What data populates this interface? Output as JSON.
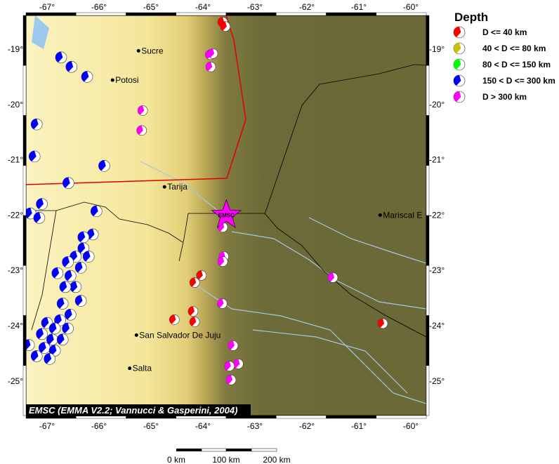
{
  "map": {
    "extent": {
      "lon": [
        -67.4,
        -59.7
      ],
      "lat": [
        -25.7,
        -18.4
      ]
    },
    "lon_ticks": [
      -67,
      -66,
      -65,
      -64,
      -63,
      -62,
      -61,
      -60
    ],
    "lat_ticks": [
      -19,
      -20,
      -21,
      -22,
      -23,
      -24,
      -25
    ],
    "lon_tick_labels": [
      "-67°",
      "-66°",
      "-65°",
      "-64°",
      "-63°",
      "-62°",
      "-61°",
      "-60°"
    ],
    "lat_tick_labels": [
      "-19°",
      "-20°",
      "-21°",
      "-22°",
      "-23°",
      "-24°",
      "-25°"
    ],
    "credit": "EMSC (EMMA V2.2; Vannucci & Gasperini, 2004)",
    "epicenter": {
      "label": "EMSC",
      "lon": -63.55,
      "lat": -22.0,
      "color": "#ff00ff"
    },
    "cities": [
      {
        "name": "Sucre",
        "lon": -65.24,
        "lat": -19.03
      },
      {
        "name": "Potosi",
        "lon": -65.74,
        "lat": -19.56
      },
      {
        "name": "Tarija",
        "lon": -64.74,
        "lat": -21.49
      },
      {
        "name": "Mariscal E",
        "lon": -60.59,
        "lat": -22.0
      },
      {
        "name": "San Salvador De Juju",
        "lon": -65.28,
        "lat": -24.17
      },
      {
        "name": "Salta",
        "lon": -65.41,
        "lat": -24.77
      }
    ],
    "events": [
      {
        "lon": -63.62,
        "lat": -18.51,
        "depth": "shallow"
      },
      {
        "lon": -63.57,
        "lat": -18.59,
        "depth": "shallow"
      },
      {
        "lon": -64.03,
        "lat": -23.09,
        "depth": "shallow"
      },
      {
        "lon": -64.16,
        "lat": -23.22,
        "depth": "shallow"
      },
      {
        "lon": -64.55,
        "lat": -23.89,
        "depth": "shallow"
      },
      {
        "lon": -64.19,
        "lat": -23.74,
        "depth": "shallow"
      },
      {
        "lon": -64.16,
        "lat": -23.93,
        "depth": "shallow"
      },
      {
        "lon": -60.54,
        "lat": -23.96,
        "depth": "shallow"
      },
      {
        "lon": -63.86,
        "lat": -19.1,
        "depth": "deep"
      },
      {
        "lon": -63.81,
        "lat": -19.08,
        "depth": "deep"
      },
      {
        "lon": -63.85,
        "lat": -19.32,
        "depth": "deep"
      },
      {
        "lon": -65.16,
        "lat": -20.11,
        "depth": "deep"
      },
      {
        "lon": -65.18,
        "lat": -20.47,
        "depth": "deep"
      },
      {
        "lon": -63.62,
        "lat": -22.22,
        "depth": "deep"
      },
      {
        "lon": -63.6,
        "lat": -22.75,
        "depth": "deep"
      },
      {
        "lon": -63.62,
        "lat": -22.84,
        "depth": "deep"
      },
      {
        "lon": -63.63,
        "lat": -23.6,
        "depth": "deep"
      },
      {
        "lon": -63.42,
        "lat": -24.36,
        "depth": "deep"
      },
      {
        "lon": -63.32,
        "lat": -24.69,
        "depth": "deep"
      },
      {
        "lon": -63.49,
        "lat": -24.73,
        "depth": "deep"
      },
      {
        "lon": -63.46,
        "lat": -24.98,
        "depth": "deep"
      },
      {
        "lon": -61.5,
        "lat": -23.13,
        "depth": "deep"
      },
      {
        "lon": -66.73,
        "lat": -19.15,
        "depth": "intermediate-deep"
      },
      {
        "lon": -66.53,
        "lat": -19.32,
        "depth": "intermediate-deep"
      },
      {
        "lon": -66.23,
        "lat": -19.5,
        "depth": "intermediate-deep"
      },
      {
        "lon": -67.2,
        "lat": -20.36,
        "depth": "intermediate-deep"
      },
      {
        "lon": -67.24,
        "lat": -20.94,
        "depth": "intermediate-deep"
      },
      {
        "lon": -65.9,
        "lat": -21.11,
        "depth": "intermediate-deep"
      },
      {
        "lon": -66.59,
        "lat": -21.42,
        "depth": "intermediate-deep"
      },
      {
        "lon": -66.05,
        "lat": -21.93,
        "depth": "intermediate-deep"
      },
      {
        "lon": -67.32,
        "lat": -21.97,
        "depth": "intermediate-deep"
      },
      {
        "lon": -67.1,
        "lat": -21.8,
        "depth": "intermediate-deep"
      },
      {
        "lon": -67.15,
        "lat": -22.05,
        "depth": "intermediate-deep"
      },
      {
        "lon": -66.12,
        "lat": -22.35,
        "depth": "intermediate-deep"
      },
      {
        "lon": -66.3,
        "lat": -22.4,
        "depth": "intermediate-deep"
      },
      {
        "lon": -66.3,
        "lat": -22.6,
        "depth": "intermediate-deep"
      },
      {
        "lon": -66.45,
        "lat": -22.75,
        "depth": "intermediate-deep"
      },
      {
        "lon": -66.6,
        "lat": -22.85,
        "depth": "intermediate-deep"
      },
      {
        "lon": -66.35,
        "lat": -22.95,
        "depth": "intermediate-deep"
      },
      {
        "lon": -66.8,
        "lat": -23.05,
        "depth": "intermediate-deep"
      },
      {
        "lon": -66.55,
        "lat": -23.1,
        "depth": "intermediate-deep"
      },
      {
        "lon": -66.45,
        "lat": -23.3,
        "depth": "intermediate-deep"
      },
      {
        "lon": -66.65,
        "lat": -23.3,
        "depth": "intermediate-deep"
      },
      {
        "lon": -66.35,
        "lat": -23.55,
        "depth": "intermediate-deep"
      },
      {
        "lon": -66.7,
        "lat": -23.6,
        "depth": "intermediate-deep"
      },
      {
        "lon": -66.55,
        "lat": -23.8,
        "depth": "intermediate-deep"
      },
      {
        "lon": -66.75,
        "lat": -23.9,
        "depth": "intermediate-deep"
      },
      {
        "lon": -67.0,
        "lat": -23.95,
        "depth": "intermediate-deep"
      },
      {
        "lon": -66.85,
        "lat": -24.05,
        "depth": "intermediate-deep"
      },
      {
        "lon": -66.6,
        "lat": -24.05,
        "depth": "intermediate-deep"
      },
      {
        "lon": -67.1,
        "lat": -24.15,
        "depth": "intermediate-deep"
      },
      {
        "lon": -66.9,
        "lat": -24.25,
        "depth": "intermediate-deep"
      },
      {
        "lon": -66.7,
        "lat": -24.25,
        "depth": "intermediate-deep"
      },
      {
        "lon": -67.05,
        "lat": -24.4,
        "depth": "intermediate-deep"
      },
      {
        "lon": -66.85,
        "lat": -24.45,
        "depth": "intermediate-deep"
      },
      {
        "lon": -67.35,
        "lat": -24.35,
        "depth": "intermediate-deep"
      },
      {
        "lon": -67.2,
        "lat": -24.55,
        "depth": "intermediate-deep"
      },
      {
        "lon": -66.95,
        "lat": -24.6,
        "depth": "intermediate-deep"
      },
      {
        "lon": -66.2,
        "lat": -22.75,
        "depth": "intermediate-deep"
      }
    ]
  },
  "legend": {
    "title": "Depth",
    "items": [
      {
        "label": "D <= 40 km",
        "color": "#ff0000",
        "key": "shallow"
      },
      {
        "label": "40 < D <= 80 km",
        "color": "#c8c000",
        "key": "intermediate"
      },
      {
        "label": "80 < D <= 150 km",
        "color": "#00ff00",
        "key": "intermediate-mid"
      },
      {
        "label": "150 < D <= 300 km",
        "color": "#0000ff",
        "key": "intermediate-deep"
      },
      {
        "label": "D > 300 km",
        "color": "#ff00ff",
        "key": "deep"
      }
    ]
  },
  "scale_bar": {
    "labels": [
      "0 km",
      "100 km",
      "200 km"
    ]
  },
  "colors": {
    "lowland": "#6b6a38",
    "andes": "#f3e59a",
    "border_red": "#e00000",
    "river": "#a8c8e0"
  }
}
